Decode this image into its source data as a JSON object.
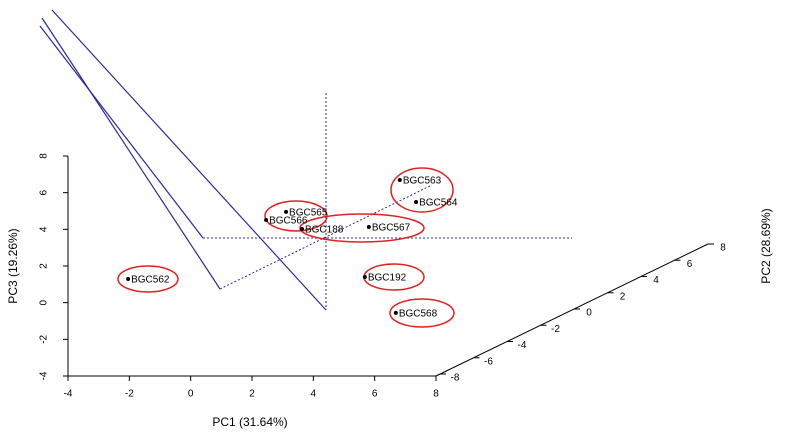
{
  "chart_data": {
    "type": "scatter3d",
    "xlabel": "PC1 (31.64%)",
    "ylabel": "PC3 (19.26%)",
    "zlabel": "PC2 (28.69%)",
    "labels": [
      "BGC563",
      "BGC564",
      "BGC565",
      "BGC566",
      "BGC188",
      "BGC567",
      "BGC562",
      "BGC192",
      "BGC568"
    ],
    "x": [
      6.82,
      7.35,
      3.11,
      2.46,
      3.63,
      5.81,
      -2.04,
      5.68,
      6.69
    ],
    "values": [
      6.69,
      5.49,
      4.95,
      4.51,
      4.02,
      4.13,
      1.29,
      1.4,
      -0.56
    ],
    "color": "#000000",
    "xlim": [
      -4,
      8
    ],
    "xticks": [
      -4,
      -2,
      0,
      2,
      4,
      6,
      8
    ],
    "ylim": [
      -4,
      8
    ],
    "yticks": [
      -4,
      -2,
      0,
      2,
      4,
      6,
      8
    ],
    "zlim": [
      -8,
      8
    ],
    "zticks": [
      -8,
      -6,
      -4,
      -2,
      0,
      2,
      4,
      6,
      8
    ]
  }
}
